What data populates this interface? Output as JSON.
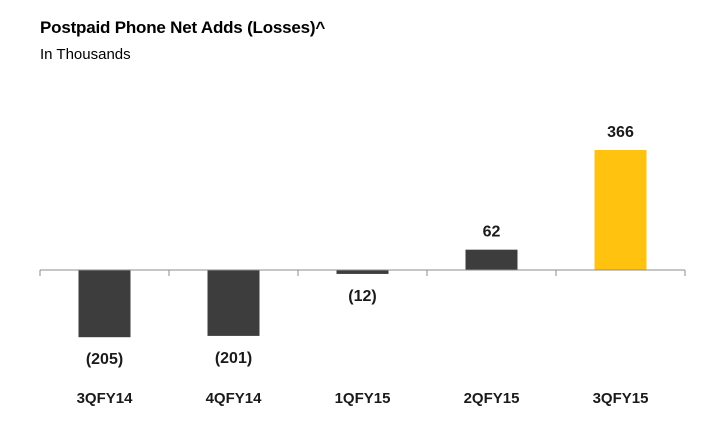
{
  "title": "Postpaid Phone Net Adds (Losses)^",
  "subtitle": "In Thousands",
  "colors": {
    "default_bar": "#3d3d3d",
    "highlight_bar": "#ffc20e",
    "axis": "#8c8c8c"
  },
  "chart_data": {
    "type": "bar",
    "title": "Postpaid Phone Net Adds (Losses)^",
    "subtitle": "In Thousands",
    "categories": [
      "3QFY14",
      "4QFY14",
      "1QFY15",
      "2QFY15",
      "3QFY15"
    ],
    "values": [
      -205,
      -201,
      -12,
      62,
      366
    ],
    "data_labels": [
      "(205)",
      "(201)",
      "(12)",
      "62",
      "366"
    ],
    "highlight_index": 4,
    "xlabel": "",
    "ylabel": "",
    "grid": false,
    "legend": "none"
  }
}
